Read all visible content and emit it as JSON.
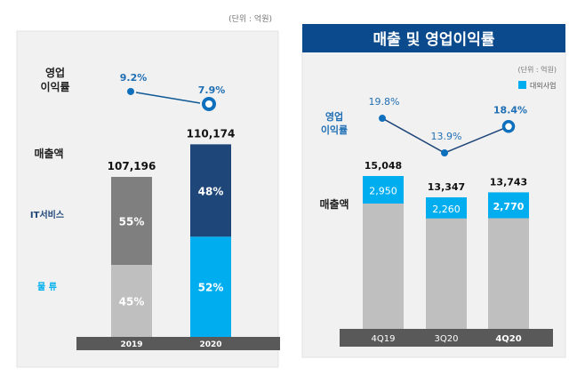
{
  "colors": {
    "panel": "#f1f1f1",
    "navy": "#1f4679",
    "dark_navy": "#0b4a8c",
    "light_blue": "#00aeef",
    "dark_gray": "#7f7f7f",
    "light_gray": "#bfbfbf",
    "axis": "#595959",
    "line": "#0e5a97"
  },
  "chart_data": [
    {
      "type": "bar",
      "stacked": true,
      "unit": "(단위 : 억원)",
      "categories": [
        "2019",
        "2020"
      ],
      "revenue_label": "매출액",
      "revenue": [
        "107,196",
        "110,174"
      ],
      "revenue_values": [
        107196,
        110174
      ],
      "series": [
        {
          "name": "IT서비스",
          "values": [
            55,
            48
          ],
          "labels": [
            "55%",
            "48%"
          ],
          "colors": [
            "#7f7f7f",
            "#1f4679"
          ]
        },
        {
          "name": "물 류",
          "values": [
            45,
            52
          ],
          "labels": [
            "45%",
            "52%"
          ],
          "colors": [
            "#bfbfbf",
            "#00aeef"
          ]
        }
      ],
      "margin_label": "영업\n이익률",
      "margin_line": {
        "values": [
          9.2,
          7.9
        ],
        "labels": [
          "9.2%",
          "7.9%"
        ]
      }
    },
    {
      "type": "bar",
      "title": "매출 및 영업이익률",
      "unit": "(단위 : 억원)",
      "legend": "대외사업",
      "legend_position": "top-right",
      "categories": [
        "4Q19",
        "3Q20",
        "4Q20"
      ],
      "revenue_label": "매출액",
      "revenue": [
        "15,048",
        "13,347",
        "13,743"
      ],
      "revenue_values": [
        15048,
        13347,
        13743
      ],
      "external": {
        "values": [
          2950,
          2260,
          2770
        ],
        "labels": [
          "2,950",
          "2,260",
          "2,770"
        ]
      },
      "margin_label": "영업\n이익률",
      "margin_line": {
        "values": [
          19.8,
          13.9,
          18.4
        ],
        "labels": [
          "19.8%",
          "13.9%",
          "18.4%"
        ]
      }
    }
  ]
}
